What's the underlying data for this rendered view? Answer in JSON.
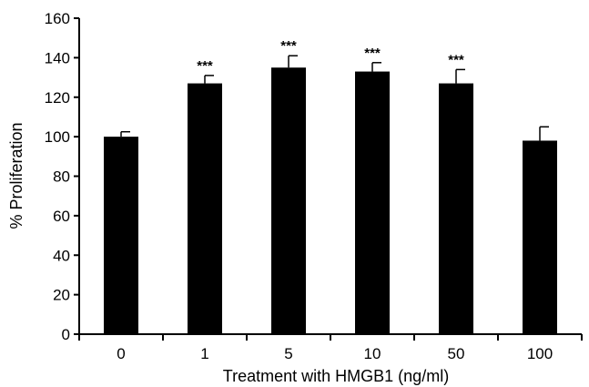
{
  "chart_data": {
    "type": "bar",
    "title": "",
    "xlabel": "Treatment with HMGB1 (ng/ml)",
    "ylabel": "% Proliferation",
    "ylim": [
      0,
      160
    ],
    "yticks": [
      0,
      20,
      40,
      60,
      80,
      100,
      120,
      140,
      160
    ],
    "categories": [
      "0",
      "1",
      "5",
      "10",
      "50",
      "100"
    ],
    "values": [
      100,
      127,
      135,
      133,
      127,
      98
    ],
    "errors": [
      2.5,
      4,
      6,
      4.5,
      7,
      7
    ],
    "annotations": [
      "",
      "***",
      "***",
      "***",
      "***",
      ""
    ],
    "bar_color": "#000000",
    "grid": false,
    "legend": "none"
  }
}
